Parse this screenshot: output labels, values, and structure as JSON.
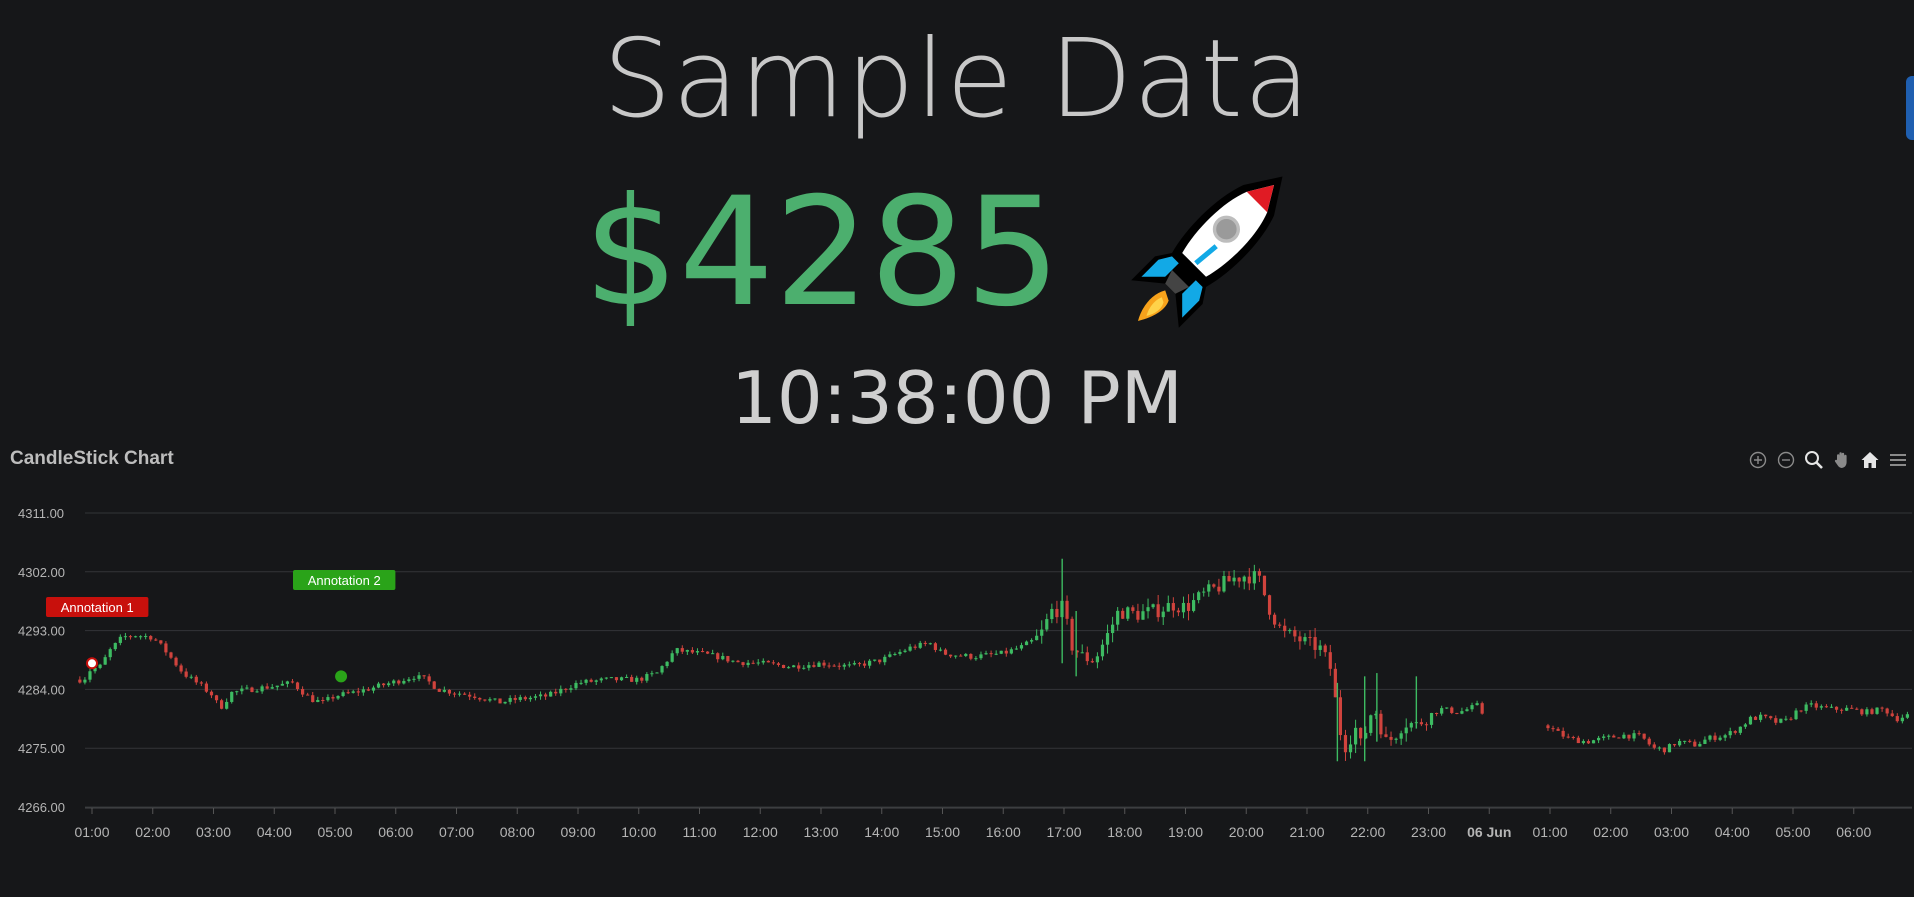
{
  "page": {
    "title": "Sample Data",
    "price": "$4285",
    "time": "10:38:00 PM",
    "price_color": "#4caf6e"
  },
  "icons": {
    "rocket": "rocket-icon",
    "toolbar": [
      "zoom-in-icon",
      "zoom-out-icon",
      "zoom-select-icon",
      "pan-icon",
      "home-icon",
      "menu-icon"
    ]
  },
  "chart_data": {
    "type": "candlestick",
    "title": "CandleStick Chart",
    "xlabel": "",
    "ylabel": "",
    "ylim": [
      4266,
      4311
    ],
    "yticks": [
      "4311.00",
      "4302.00",
      "4293.00",
      "4284.00",
      "4275.00",
      "4266.00"
    ],
    "xticks": [
      "01:00",
      "02:00",
      "03:00",
      "04:00",
      "05:00",
      "06:00",
      "07:00",
      "08:00",
      "09:00",
      "10:00",
      "11:00",
      "12:00",
      "13:00",
      "14:00",
      "15:00",
      "16:00",
      "17:00",
      "18:00",
      "19:00",
      "20:00",
      "21:00",
      "22:00",
      "23:00",
      "06 Jun",
      "01:00",
      "02:00",
      "03:00",
      "04:00",
      "05:00",
      "06:00"
    ],
    "x_start_hour": 0.8,
    "x_end_hour": 30.95,
    "gap_hours": [
      23.95,
      24.95
    ],
    "up_color": "#3dbb62",
    "down_color": "#d0433d",
    "grid": true,
    "close_path": [
      [
        0.8,
        4285.5
      ],
      [
        0.9,
        4285.8
      ],
      [
        1.0,
        4287.5
      ],
      [
        1.1,
        4287.0
      ],
      [
        1.3,
        4290.0
      ],
      [
        1.5,
        4292.0
      ],
      [
        1.7,
        4292.3
      ],
      [
        2.0,
        4292.0
      ],
      [
        2.2,
        4290.0
      ],
      [
        2.5,
        4286.5
      ],
      [
        2.8,
        4284.5
      ],
      [
        3.0,
        4283.0
      ],
      [
        3.1,
        4281.0
      ],
      [
        3.3,
        4283.5
      ],
      [
        3.6,
        4284.0
      ],
      [
        4.0,
        4284.5
      ],
      [
        4.3,
        4285.0
      ],
      [
        4.6,
        4282.5
      ],
      [
        4.8,
        4282.0
      ],
      [
        5.0,
        4283.0
      ],
      [
        5.3,
        4283.5
      ],
      [
        5.6,
        4284.2
      ],
      [
        6.0,
        4285.2
      ],
      [
        6.3,
        4286.0
      ],
      [
        6.5,
        4285.5
      ],
      [
        6.7,
        4284.0
      ],
      [
        7.0,
        4283.5
      ],
      [
        7.3,
        4283.0
      ],
      [
        7.7,
        4282.0
      ],
      [
        8.0,
        4282.5
      ],
      [
        8.5,
        4283.0
      ],
      [
        9.0,
        4285.0
      ],
      [
        9.5,
        4285.5
      ],
      [
        10.0,
        4285.5
      ],
      [
        10.3,
        4286.5
      ],
      [
        10.6,
        4290.0
      ],
      [
        11.0,
        4289.5
      ],
      [
        11.3,
        4289.0
      ],
      [
        11.6,
        4288.2
      ],
      [
        12.0,
        4288.0
      ],
      [
        12.5,
        4287.5
      ],
      [
        13.0,
        4288.0
      ],
      [
        13.5,
        4287.5
      ],
      [
        14.0,
        4288.5
      ],
      [
        14.5,
        4290.5
      ],
      [
        14.8,
        4291.0
      ],
      [
        15.0,
        4289.5
      ],
      [
        15.5,
        4289.0
      ],
      [
        16.0,
        4289.5
      ],
      [
        16.3,
        4290.5
      ],
      [
        16.6,
        4292.0
      ],
      [
        16.8,
        4296.0
      ],
      [
        17.0,
        4296.5
      ],
      [
        17.1,
        4291.0
      ],
      [
        17.3,
        4289.0
      ],
      [
        17.5,
        4288.5
      ],
      [
        17.7,
        4292.0
      ],
      [
        17.9,
        4296.0
      ],
      [
        18.2,
        4295.5
      ],
      [
        18.5,
        4296.0
      ],
      [
        18.8,
        4297.0
      ],
      [
        19.0,
        4296.5
      ],
      [
        19.3,
        4298.5
      ],
      [
        19.6,
        4300.0
      ],
      [
        19.8,
        4301.0
      ],
      [
        20.0,
        4301.5
      ],
      [
        20.2,
        4301.0
      ],
      [
        20.4,
        4296.0
      ],
      [
        20.6,
        4292.5
      ],
      [
        20.8,
        4292.0
      ],
      [
        21.0,
        4291.0
      ],
      [
        21.2,
        4290.5
      ],
      [
        21.4,
        4287.0
      ],
      [
        21.5,
        4280.0
      ],
      [
        21.6,
        4275.0
      ],
      [
        21.8,
        4278.0
      ],
      [
        21.9,
        4275.0
      ],
      [
        22.0,
        4279.0
      ],
      [
        22.1,
        4281.5
      ],
      [
        22.3,
        4276.0
      ],
      [
        22.4,
        4276.5
      ],
      [
        22.6,
        4279.0
      ],
      [
        22.8,
        4278.5
      ],
      [
        23.0,
        4280.0
      ],
      [
        23.2,
        4281.0
      ],
      [
        23.5,
        4280.5
      ],
      [
        23.8,
        4281.5
      ],
      [
        23.95,
        4279.5
      ],
      [
        24.95,
        4278.5
      ],
      [
        25.1,
        4277.5
      ],
      [
        25.3,
        4276.5
      ],
      [
        25.6,
        4276.0
      ],
      [
        25.9,
        4276.5
      ],
      [
        26.2,
        4277.0
      ],
      [
        26.5,
        4276.8
      ],
      [
        26.7,
        4275.0
      ],
      [
        26.9,
        4274.8
      ],
      [
        27.1,
        4276.0
      ],
      [
        27.4,
        4275.5
      ],
      [
        27.6,
        4276.5
      ],
      [
        27.9,
        4277.0
      ],
      [
        28.1,
        4278.0
      ],
      [
        28.3,
        4279.5
      ],
      [
        28.5,
        4279.8
      ],
      [
        28.7,
        4279.0
      ],
      [
        28.9,
        4279.2
      ],
      [
        29.1,
        4281.0
      ],
      [
        29.3,
        4281.5
      ],
      [
        29.6,
        4281.0
      ],
      [
        29.9,
        4281.0
      ],
      [
        30.2,
        4280.5
      ],
      [
        30.5,
        4281.0
      ],
      [
        30.7,
        4279.5
      ],
      [
        30.95,
        4280.2
      ]
    ],
    "spikes": [
      [
        16.97,
        4304.0,
        4288.0
      ],
      [
        17.2,
        4296.0,
        4286.0
      ],
      [
        21.5,
        4285.0,
        4273.0
      ],
      [
        21.95,
        4286.0,
        4273.0
      ],
      [
        22.15,
        4286.5,
        4276.0
      ],
      [
        22.8,
        4286.0,
        4278.0
      ]
    ],
    "annotations": [
      {
        "label": "Annotation 1",
        "x": 1.0,
        "y": 4288.0,
        "color": "#c8100c"
      },
      {
        "label": "Annotation 2",
        "x": 5.1,
        "y": 4286.0,
        "color": "#2aa319"
      }
    ]
  }
}
